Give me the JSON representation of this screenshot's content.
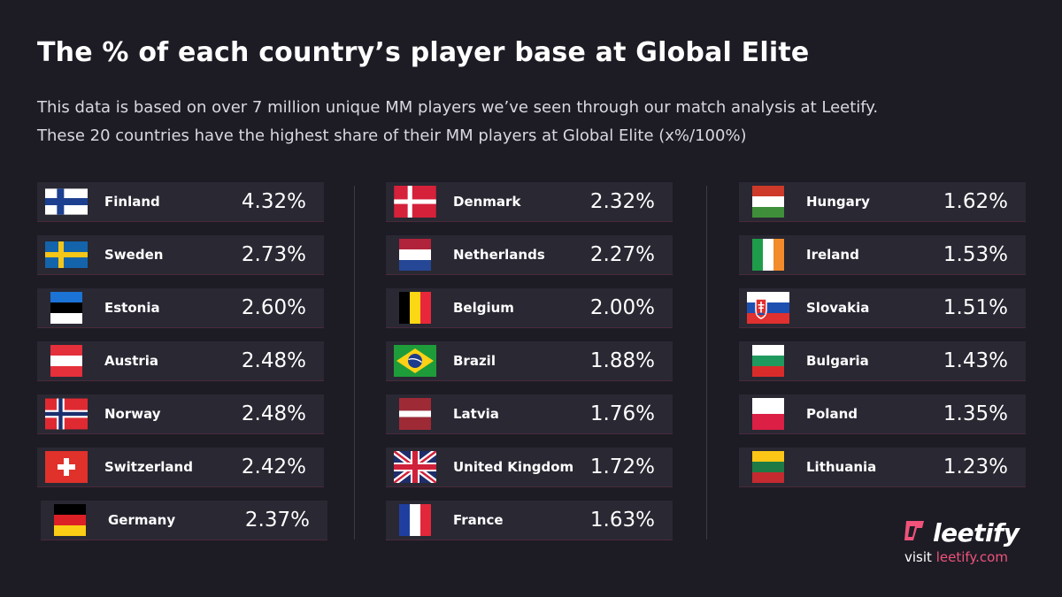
{
  "title": "The % of each country’s player base at Global Elite",
  "subtitle": [
    "This data is based on over 7 million unique MM players we’ve seen through our match analysis at Leetify.",
    "These 20 countries have the highest share of their MM players at Global Elite (x%/100%)"
  ],
  "columns": [
    [
      {
        "country": "Finland",
        "pct": "4.32%",
        "flag": "finland-flag-icon"
      },
      {
        "country": "Sweden",
        "pct": "2.73%",
        "flag": "sweden-flag-icon"
      },
      {
        "country": "Estonia",
        "pct": "2.60%",
        "flag": "estonia-flag-icon"
      },
      {
        "country": "Austria",
        "pct": "2.48%",
        "flag": "austria-flag-icon"
      },
      {
        "country": "Norway",
        "pct": "2.48%",
        "flag": "norway-flag-icon"
      },
      {
        "country": "Switzerland",
        "pct": "2.42%",
        "flag": "switzerland-flag-icon"
      },
      {
        "country": "Germany",
        "pct": "2.37%",
        "flag": "germany-flag-icon"
      }
    ],
    [
      {
        "country": "Denmark",
        "pct": "2.32%",
        "flag": "denmark-flag-icon"
      },
      {
        "country": "Netherlands",
        "pct": "2.27%",
        "flag": "netherlands-flag-icon"
      },
      {
        "country": "Belgium",
        "pct": "2.00%",
        "flag": "belgium-flag-icon"
      },
      {
        "country": "Brazil",
        "pct": "1.88%",
        "flag": "brazil-flag-icon"
      },
      {
        "country": "Latvia",
        "pct": "1.76%",
        "flag": "latvia-flag-icon"
      },
      {
        "country": "United Kingdom",
        "pct": "1.72%",
        "flag": "united-kingdom-flag-icon"
      },
      {
        "country": "France",
        "pct": "1.63%",
        "flag": "france-flag-icon"
      }
    ],
    [
      {
        "country": "Hungary",
        "pct": "1.62%",
        "flag": "hungary-flag-icon"
      },
      {
        "country": "Ireland",
        "pct": "1.53%",
        "flag": "ireland-flag-icon"
      },
      {
        "country": "Slovakia",
        "pct": "1.51%",
        "flag": "slovakia-flag-icon"
      },
      {
        "country": "Bulgaria",
        "pct": "1.43%",
        "flag": "bulgaria-flag-icon"
      },
      {
        "country": "Poland",
        "pct": "1.35%",
        "flag": "poland-flag-icon"
      },
      {
        "country": "Lithuania",
        "pct": "1.23%",
        "flag": "lithuania-flag-icon"
      }
    ]
  ],
  "brand": {
    "name": "leetify",
    "logo_icon": "leetify-logo-icon",
    "visit_prefix": "visit",
    "visit_link": "leetify.com",
    "accent_color": "#f0527a"
  },
  "colors": {
    "background": "#1d1c25",
    "row_background": "#292833"
  }
}
